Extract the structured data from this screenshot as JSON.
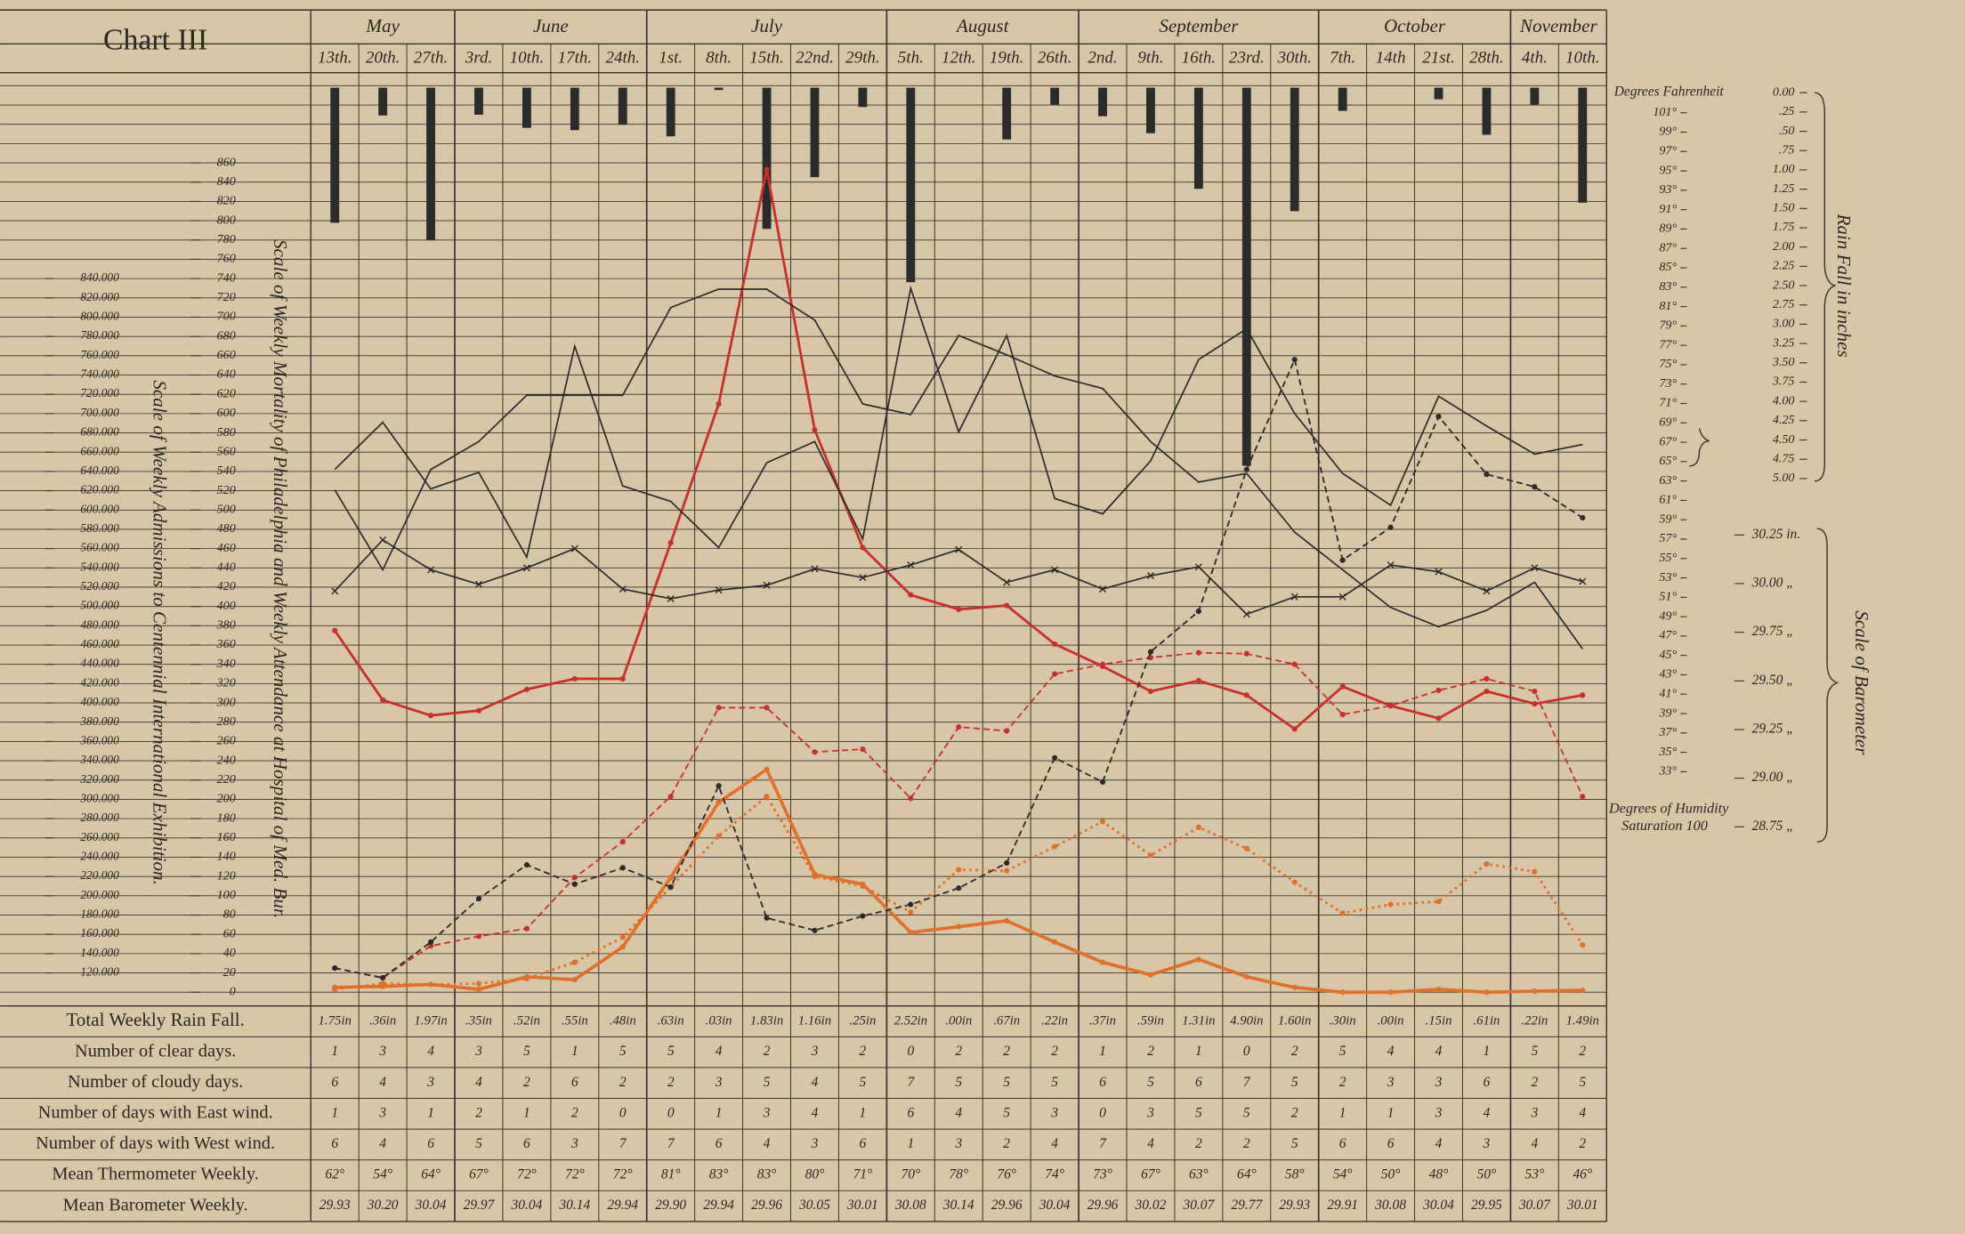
{
  "chart_data": {
    "type": "line",
    "title": "Chart III",
    "months": [
      {
        "label": "May",
        "span": [
          0,
          2
        ]
      },
      {
        "label": "June",
        "span": [
          3,
          6
        ]
      },
      {
        "label": "July",
        "span": [
          7,
          11
        ]
      },
      {
        "label": "August",
        "span": [
          12,
          15
        ]
      },
      {
        "label": "September",
        "span": [
          16,
          20
        ]
      },
      {
        "label": "October",
        "span": [
          21,
          24
        ]
      },
      {
        "label": "November",
        "span": [
          25,
          26
        ]
      }
    ],
    "categories": [
      "13th.",
      "20th.",
      "27th.",
      "3rd.",
      "10th.",
      "17th.",
      "24th.",
      "1st.",
      "8th.",
      "15th.",
      "22nd.",
      "29th.",
      "5th.",
      "12th.",
      "19th.",
      "26th.",
      "2nd.",
      "9th.",
      "16th.",
      "23rd.",
      "30th.",
      "7th.",
      "14th",
      "21st.",
      "28th.",
      "4th.",
      "10th."
    ],
    "y_label": "Scale of Weekly Mortality of Philadelphia and Weekly Attendance at Hospital of Med. Bur.",
    "y2_label": "Scale of Weekly Admissions to Centennial International Exhibition.",
    "ylim": [
      0,
      860
    ],
    "yticks": [
      0,
      20,
      40,
      60,
      80,
      100,
      120,
      140,
      160,
      180,
      200,
      220,
      240,
      260,
      280,
      300,
      320,
      340,
      360,
      380,
      400,
      420,
      440,
      460,
      480,
      500,
      520,
      540,
      560,
      580,
      600,
      620,
      640,
      660,
      680,
      700,
      720,
      740,
      760,
      780,
      800,
      820,
      840,
      860
    ],
    "y2lim": [
      100000,
      960000
    ],
    "y2ticks": [
      {
        "value": 120000,
        "label": "120.000"
      },
      {
        "value": 140000,
        "label": "140.000"
      },
      {
        "value": 160000,
        "label": "160.000"
      },
      {
        "value": 180000,
        "label": "180.000"
      },
      {
        "value": 200000,
        "label": "200.000"
      },
      {
        "value": 220000,
        "label": "220.000"
      },
      {
        "value": 240000,
        "label": "240.000"
      },
      {
        "value": 260000,
        "label": "260.000"
      },
      {
        "value": 280000,
        "label": "280.000"
      },
      {
        "value": 300000,
        "label": "300.000"
      },
      {
        "value": 320000,
        "label": "320.000"
      },
      {
        "value": 340000,
        "label": "340.000"
      },
      {
        "value": 360000,
        "label": "360.000"
      },
      {
        "value": 380000,
        "label": "380.000"
      },
      {
        "value": 400000,
        "label": "400.000"
      },
      {
        "value": 420000,
        "label": "420.000"
      },
      {
        "value": 440000,
        "label": "440.000"
      },
      {
        "value": 460000,
        "label": "460.000"
      },
      {
        "value": 480000,
        "label": "480.000"
      },
      {
        "value": 500000,
        "label": "500.000"
      },
      {
        "value": 520000,
        "label": "520.000"
      },
      {
        "value": 540000,
        "label": "540.000"
      },
      {
        "value": 560000,
        "label": "560.000"
      },
      {
        "value": 580000,
        "label": "580.000"
      },
      {
        "value": 600000,
        "label": "600.000"
      },
      {
        "value": 620000,
        "label": "620.000"
      },
      {
        "value": 640000,
        "label": "640.000"
      },
      {
        "value": 660000,
        "label": "660.000"
      },
      {
        "value": 680000,
        "label": "680.000"
      },
      {
        "value": 700000,
        "label": "700.000"
      },
      {
        "value": 720000,
        "label": "720.000"
      },
      {
        "value": 740000,
        "label": "740.000"
      },
      {
        "value": 760000,
        "label": "760.000"
      },
      {
        "value": 780000,
        "label": "780.000"
      },
      {
        "value": 800000,
        "label": "800.000"
      },
      {
        "value": 820000,
        "label": "820.000"
      },
      {
        "value": 840000,
        "label": "840.000"
      }
    ],
    "grid": true,
    "series": [
      {
        "color": "#c8302a",
        "dash": "none",
        "marker": "dot",
        "width": 2,
        "values": [
          375,
          303,
          287,
          292,
          314,
          325,
          325,
          466,
          610,
          853,
          583,
          461,
          412,
          397,
          401,
          361,
          338,
          312,
          323,
          308,
          273,
          317,
          297,
          284,
          312,
          299,
          308
        ]
      },
      {
        "color": "#c8302a",
        "dash": "dashed",
        "marker": "dot",
        "width": 1.3,
        "values": [
          25,
          15,
          48,
          58,
          66,
          119,
          156,
          203,
          295,
          295,
          249,
          252,
          201,
          275,
          271,
          330,
          340,
          347,
          352,
          351,
          340,
          288,
          297,
          313,
          325,
          312,
          203
        ]
      },
      {
        "color": "#e0702a",
        "dash": "none",
        "marker": "dot",
        "width": 2.6,
        "values": [
          5,
          6,
          8,
          3,
          16,
          13,
          47,
          119,
          197,
          231,
          122,
          112,
          62,
          68,
          74,
          52,
          31,
          18,
          34,
          16,
          5,
          0,
          0,
          3,
          0,
          1,
          2
        ]
      },
      {
        "color": "#e0702a",
        "dash": "dotted",
        "marker": "dot",
        "width": 2,
        "values": [
          3,
          9,
          8,
          9,
          14,
          31,
          57,
          109,
          162,
          203,
          120,
          110,
          83,
          127,
          126,
          151,
          177,
          142,
          171,
          149,
          114,
          82,
          91,
          94,
          133,
          125,
          49
        ]
      },
      {
        "color": "#2b2b2b",
        "dash": "dashed",
        "marker": "dot",
        "width": 1.3,
        "values": [
          25,
          15,
          52,
          97,
          132,
          112,
          129,
          109,
          214,
          77,
          64,
          79,
          91,
          108,
          134,
          243,
          218,
          353,
          395,
          542,
          656,
          448,
          482,
          597,
          537,
          524,
          492
        ]
      },
      {
        "color": "#2b2b2b",
        "dash": "none",
        "marker": "x",
        "width": 1.2,
        "values": [
          416,
          469,
          438,
          423,
          440,
          460,
          418,
          408,
          417,
          422,
          439,
          430,
          443,
          459,
          425,
          438,
          418,
          432,
          441,
          392,
          410,
          410,
          443,
          436,
          416,
          440,
          426
        ]
      },
      {
        "color": "#2b2b2b",
        "dash": "none",
        "marker": "none",
        "width": 1.2,
        "values": [
          521,
          438,
          542,
          571,
          619,
          619,
          619,
          710,
          729,
          729,
          697,
          610,
          599,
          681,
          661,
          639,
          626,
          571,
          529,
          538,
          477,
          438,
          399,
          379,
          396,
          425,
          356
        ]
      },
      {
        "color": "#2b2b2b",
        "dash": "none",
        "marker": "none",
        "width": 1.2,
        "values": [
          542,
          591,
          522,
          539,
          451,
          670,
          525,
          509,
          461,
          549,
          571,
          470,
          730,
          581,
          681,
          512,
          496,
          551,
          656,
          688,
          600,
          538,
          505,
          618,
          587,
          558,
          568
        ]
      }
    ],
    "rain": {
      "label": "Rain Fall in inches",
      "color": "#2b2b2b",
      "lim": [
        0,
        5
      ],
      "values": [
        1.75,
        0.36,
        1.97,
        0.35,
        0.52,
        0.55,
        0.48,
        0.63,
        0.03,
        1.83,
        1.16,
        0.25,
        2.52,
        0,
        0.67,
        0.22,
        0.37,
        0.59,
        1.31,
        4.9,
        1.6,
        0.3,
        0,
        0.15,
        0.61,
        0.22,
        1.49
      ],
      "value_labels": [
        "1.75in",
        ".36in",
        "1.97in",
        ".35in",
        ".52in",
        ".55in",
        ".48in",
        ".63in",
        ".03in",
        "1.83in",
        "1.16in",
        ".25in",
        "2.52in",
        ".00in",
        ".67in",
        ".22in",
        ".37in",
        ".59in",
        "1.31in",
        "4.90in",
        "1.60in",
        ".30in",
        ".00in",
        ".15in",
        ".61in",
        ".22in",
        "1.49in"
      ],
      "ticks": [
        {
          "value": 0,
          "label": "0.00"
        },
        {
          "value": 0.25,
          "label": ".25"
        },
        {
          "value": 0.5,
          "label": ".50"
        },
        {
          "value": 0.75,
          "label": ".75"
        },
        {
          "value": 1,
          "label": "1.00"
        },
        {
          "value": 1.25,
          "label": "1.25"
        },
        {
          "value": 1.5,
          "label": "1.50"
        },
        {
          "value": 1.75,
          "label": "1.75"
        },
        {
          "value": 2,
          "label": "2.00"
        },
        {
          "value": 2.25,
          "label": "2.25"
        },
        {
          "value": 2.5,
          "label": "2.50"
        },
        {
          "value": 2.75,
          "label": "2.75"
        },
        {
          "value": 3,
          "label": "3.00"
        },
        {
          "value": 3.25,
          "label": "3.25"
        },
        {
          "value": 3.5,
          "label": "3.50"
        },
        {
          "value": 3.75,
          "label": "3.75"
        },
        {
          "value": 4,
          "label": "4.00"
        },
        {
          "value": 4.25,
          "label": "4.25"
        },
        {
          "value": 4.5,
          "label": "4.50"
        },
        {
          "value": 4.75,
          "label": "4.75"
        },
        {
          "value": 5,
          "label": "5.00"
        }
      ]
    },
    "temperature": {
      "label": "Degrees Fahrenheit",
      "lim": [
        33,
        101
      ],
      "ticks": [
        {
          "value": 101,
          "label": "101°"
        },
        {
          "value": 99,
          "label": "99°"
        },
        {
          "value": 97,
          "label": "97°"
        },
        {
          "value": 95,
          "label": "95°"
        },
        {
          "value": 93,
          "label": "93°"
        },
        {
          "value": 91,
          "label": "91°"
        },
        {
          "value": 89,
          "label": "89°"
        },
        {
          "value": 87,
          "label": "87°"
        },
        {
          "value": 85,
          "label": "85°"
        },
        {
          "value": 83,
          "label": "83°"
        },
        {
          "value": 81,
          "label": "81°"
        },
        {
          "value": 79,
          "label": "79°"
        },
        {
          "value": 77,
          "label": "77°"
        },
        {
          "value": 75,
          "label": "75°"
        },
        {
          "value": 73,
          "label": "73°"
        },
        {
          "value": 71,
          "label": "71°"
        },
        {
          "value": 69,
          "label": "69°"
        },
        {
          "value": 67,
          "label": "67°"
        },
        {
          "value": 65,
          "label": "65°"
        },
        {
          "value": 63,
          "label": "63°"
        },
        {
          "value": 61,
          "label": "61°"
        },
        {
          "value": 59,
          "label": "59°"
        },
        {
          "value": 57,
          "label": "57°"
        },
        {
          "value": 55,
          "label": "55°"
        },
        {
          "value": 53,
          "label": "53°"
        },
        {
          "value": 51,
          "label": "51°"
        },
        {
          "value": 49,
          "label": "49°"
        },
        {
          "value": 47,
          "label": "47°"
        },
        {
          "value": 45,
          "label": "45°"
        },
        {
          "value": 43,
          "label": "43°"
        },
        {
          "value": 41,
          "label": "41°"
        },
        {
          "value": 39,
          "label": "39°"
        },
        {
          "value": 37,
          "label": "37°"
        },
        {
          "value": 35,
          "label": "35°"
        },
        {
          "value": 33,
          "label": "33°"
        }
      ]
    },
    "barometer": {
      "label": "Scale of Barometer",
      "lim": [
        28.75,
        30.25
      ],
      "ticks": [
        {
          "value": 30.25,
          "label": "30.25 in."
        },
        {
          "value": 30,
          "label": "30.00 „"
        },
        {
          "value": 29.75,
          "label": "29.75 „"
        },
        {
          "value": 29.5,
          "label": "29.50 „"
        },
        {
          "value": 29.25,
          "label": "29.25 „"
        },
        {
          "value": 29,
          "label": "29.00 „"
        },
        {
          "value": 28.75,
          "label": "28.75 „"
        }
      ]
    },
    "humidity_label": "Degrees of Humidity",
    "humidity_saturation": "Saturation 100",
    "table": {
      "rain_label": "Total Weekly Rain Fall.",
      "rows": [
        {
          "label": "Number of clear days.",
          "values": [
            1,
            3,
            4,
            3,
            5,
            1,
            5,
            5,
            4,
            2,
            3,
            2,
            0,
            2,
            2,
            2,
            1,
            2,
            1,
            0,
            2,
            5,
            4,
            4,
            1,
            5,
            2
          ]
        },
        {
          "label": "Number of cloudy days.",
          "values": [
            6,
            4,
            3,
            4,
            2,
            6,
            2,
            2,
            3,
            5,
            4,
            5,
            7,
            5,
            5,
            5,
            6,
            5,
            6,
            7,
            5,
            2,
            3,
            3,
            6,
            2,
            5
          ]
        },
        {
          "label": "Number of days with East wind.",
          "values": [
            1,
            3,
            1,
            2,
            1,
            2,
            0,
            0,
            1,
            3,
            4,
            1,
            6,
            4,
            5,
            3,
            0,
            3,
            5,
            5,
            2,
            1,
            1,
            3,
            4,
            3,
            4
          ]
        },
        {
          "label": "Number of days with West wind.",
          "values": [
            6,
            4,
            6,
            5,
            6,
            3,
            7,
            7,
            6,
            4,
            3,
            6,
            1,
            3,
            2,
            4,
            7,
            4,
            2,
            2,
            5,
            6,
            6,
            4,
            3,
            4,
            2
          ]
        },
        {
          "label": "Mean Thermometer Weekly.",
          "values": [
            "62°",
            "54°",
            "64°",
            "67°",
            "72°",
            "72°",
            "72°",
            "81°",
            "83°",
            "83°",
            "80°",
            "71°",
            "70°",
            "78°",
            "76°",
            "74°",
            "73°",
            "67°",
            "63°",
            "64°",
            "58°",
            "54°",
            "50°",
            "48°",
            "50°",
            "53°",
            "46°"
          ]
        },
        {
          "label": "Mean Barometer Weekly.",
          "values": [
            "29.93",
            "30.20",
            "30.04",
            "29.97",
            "30.04",
            "30.14",
            "29.94",
            "29.90",
            "29.94",
            "29.96",
            "30.05",
            "30.01",
            "30.08",
            "30.14",
            "29.96",
            "30.04",
            "29.96",
            "30.02",
            "30.07",
            "29.77",
            "29.93",
            "29.91",
            "30.08",
            "30.04",
            "29.95",
            "30.07",
            "30.01"
          ]
        }
      ]
    }
  }
}
